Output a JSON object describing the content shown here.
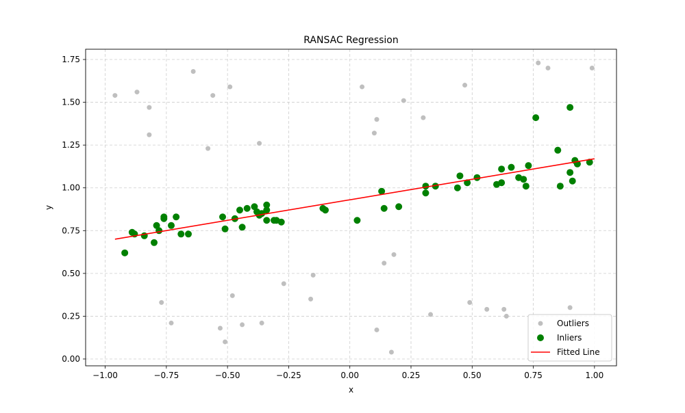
{
  "chart_data": {
    "type": "scatter",
    "title": "RANSAC Regression",
    "xlabel": "x",
    "ylabel": "y",
    "xlim": [
      -1.08,
      1.09
    ],
    "ylim": [
      -0.04,
      1.81
    ],
    "xticks": [
      -1.0,
      -0.75,
      -0.5,
      -0.25,
      0.0,
      0.25,
      0.5,
      0.75,
      1.0
    ],
    "xtick_labels": [
      "−1.00",
      "−0.75",
      "−0.50",
      "−0.25",
      "0.00",
      "0.25",
      "0.50",
      "0.75",
      "1.00"
    ],
    "yticks": [
      0.0,
      0.25,
      0.5,
      0.75,
      1.0,
      1.25,
      1.5,
      1.75
    ],
    "ytick_labels": [
      "0.00",
      "0.25",
      "0.50",
      "0.75",
      "1.00",
      "1.25",
      "1.50",
      "1.75"
    ],
    "grid": true,
    "legend_position": "bottom-right",
    "series": [
      {
        "name": "Outliers",
        "kind": "scatter",
        "color": "#bfbfbf",
        "points": [
          [
            -0.96,
            1.54
          ],
          [
            -0.87,
            1.56
          ],
          [
            -0.82,
            1.47
          ],
          [
            -0.82,
            1.31
          ],
          [
            -0.64,
            1.68
          ],
          [
            -0.56,
            1.54
          ],
          [
            -0.49,
            1.59
          ],
          [
            -0.58,
            1.23
          ],
          [
            -0.37,
            1.26
          ],
          [
            -0.77,
            0.33
          ],
          [
            -0.73,
            0.21
          ],
          [
            -0.53,
            0.18
          ],
          [
            -0.51,
            0.1
          ],
          [
            -0.48,
            0.37
          ],
          [
            -0.44,
            0.2
          ],
          [
            -0.36,
            0.21
          ],
          [
            -0.27,
            0.44
          ],
          [
            -0.15,
            0.49
          ],
          [
            -0.16,
            0.35
          ],
          [
            0.05,
            1.59
          ],
          [
            0.11,
            1.4
          ],
          [
            0.1,
            1.32
          ],
          [
            0.22,
            1.51
          ],
          [
            0.3,
            1.41
          ],
          [
            0.47,
            1.6
          ],
          [
            0.14,
            0.56
          ],
          [
            0.18,
            0.61
          ],
          [
            0.11,
            0.17
          ],
          [
            0.17,
            0.04
          ],
          [
            0.33,
            0.26
          ],
          [
            0.49,
            0.33
          ],
          [
            0.56,
            0.29
          ],
          [
            0.63,
            0.29
          ],
          [
            0.64,
            0.25
          ],
          [
            0.77,
            1.73
          ],
          [
            0.81,
            1.7
          ],
          [
            0.99,
            1.7
          ],
          [
            0.9,
            0.3
          ]
        ]
      },
      {
        "name": "Inliers",
        "kind": "scatter",
        "color": "#008000",
        "points": [
          [
            -0.92,
            0.62
          ],
          [
            -0.89,
            0.74
          ],
          [
            -0.88,
            0.73
          ],
          [
            -0.84,
            0.72
          ],
          [
            -0.8,
            0.68
          ],
          [
            -0.79,
            0.78
          ],
          [
            -0.78,
            0.75
          ],
          [
            -0.76,
            0.83
          ],
          [
            -0.76,
            0.82
          ],
          [
            -0.73,
            0.78
          ],
          [
            -0.71,
            0.83
          ],
          [
            -0.69,
            0.73
          ],
          [
            -0.66,
            0.73
          ],
          [
            -0.52,
            0.83
          ],
          [
            -0.51,
            0.76
          ],
          [
            -0.47,
            0.82
          ],
          [
            -0.45,
            0.87
          ],
          [
            -0.44,
            0.77
          ],
          [
            -0.42,
            0.88
          ],
          [
            -0.39,
            0.89
          ],
          [
            -0.38,
            0.86
          ],
          [
            -0.37,
            0.84
          ],
          [
            -0.36,
            0.85
          ],
          [
            -0.34,
            0.9
          ],
          [
            -0.34,
            0.87
          ],
          [
            -0.34,
            0.81
          ],
          [
            -0.31,
            0.81
          ],
          [
            -0.3,
            0.81
          ],
          [
            -0.28,
            0.8
          ],
          [
            -0.11,
            0.88
          ],
          [
            -0.1,
            0.87
          ],
          [
            0.03,
            0.81
          ],
          [
            0.13,
            0.98
          ],
          [
            0.14,
            0.88
          ],
          [
            0.2,
            0.89
          ],
          [
            0.31,
            1.01
          ],
          [
            0.31,
            0.97
          ],
          [
            0.35,
            1.01
          ],
          [
            0.44,
            1.0
          ],
          [
            0.45,
            1.07
          ],
          [
            0.48,
            1.03
          ],
          [
            0.52,
            1.06
          ],
          [
            0.6,
            1.02
          ],
          [
            0.62,
            1.11
          ],
          [
            0.62,
            1.03
          ],
          [
            0.66,
            1.12
          ],
          [
            0.69,
            1.06
          ],
          [
            0.71,
            1.05
          ],
          [
            0.72,
            1.01
          ],
          [
            0.73,
            1.13
          ],
          [
            0.76,
            1.41
          ],
          [
            0.85,
            1.22
          ],
          [
            0.86,
            1.01
          ],
          [
            0.9,
            1.47
          ],
          [
            0.9,
            1.09
          ],
          [
            0.91,
            1.04
          ],
          [
            0.92,
            1.16
          ],
          [
            0.93,
            1.14
          ],
          [
            0.93,
            1.14
          ],
          [
            0.98,
            1.15
          ]
        ]
      },
      {
        "name": "Fitted Line",
        "kind": "line",
        "color": "#ff0000",
        "points": [
          [
            -0.96,
            0.7
          ],
          [
            1.0,
            1.17
          ]
        ]
      }
    ]
  }
}
